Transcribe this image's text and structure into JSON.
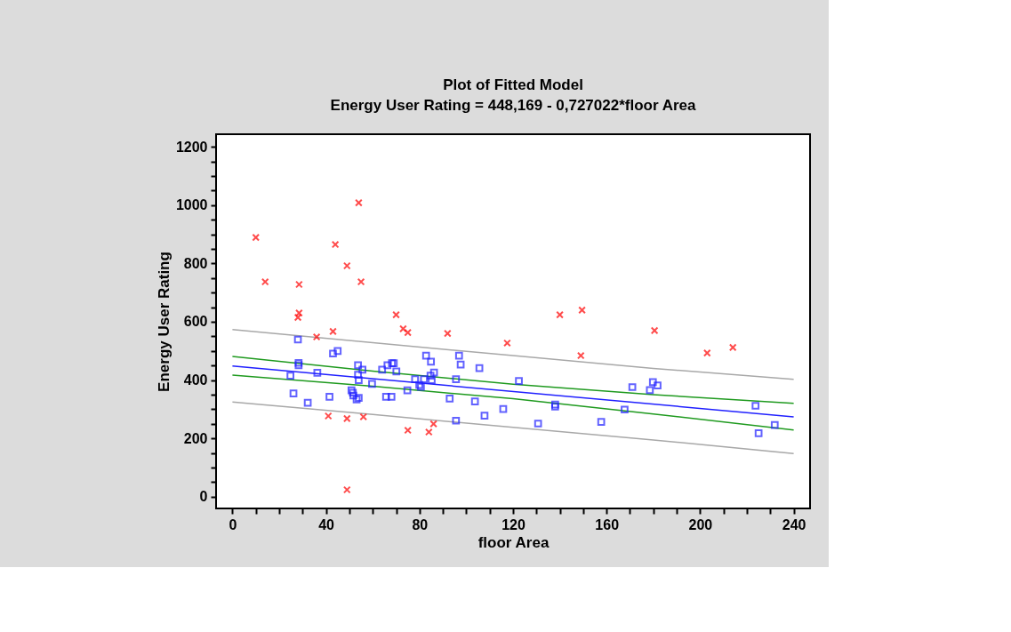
{
  "chart_data": {
    "type": "scatter",
    "title": "Plot of Fitted Model",
    "subtitle": "Energy User Rating = 448,169 - 0,727022*floor Area",
    "xlabel": "floor Area",
    "ylabel": "Energy User Rating",
    "xlim": [
      -7,
      247
    ],
    "ylim": [
      -40,
      1243
    ],
    "xticks": [
      0,
      {
        "value": 10,
        "label": null
      },
      {
        "value": 20,
        "label": null
      },
      {
        "value": 30,
        "label": null
      },
      40,
      {
        "value": 50,
        "label": null
      },
      {
        "value": 60,
        "label": null
      },
      {
        "value": 70,
        "label": null
      },
      80,
      {
        "value": 90,
        "label": null
      },
      {
        "value": 100,
        "label": null
      },
      {
        "value": 110,
        "label": null
      },
      120,
      {
        "value": 130,
        "label": null
      },
      {
        "value": 140,
        "label": null
      },
      {
        "value": 150,
        "label": null
      },
      160,
      {
        "value": 170,
        "label": null
      },
      {
        "value": 180,
        "label": null
      },
      {
        "value": 190,
        "label": null
      },
      200,
      {
        "value": 210,
        "label": null
      },
      {
        "value": 220,
        "label": null
      },
      {
        "value": 230,
        "label": null
      },
      240
    ],
    "yticks": [
      0,
      {
        "value": 50,
        "label": null
      },
      {
        "value": 100,
        "label": null
      },
      {
        "value": 150,
        "label": null
      },
      200,
      {
        "value": 250,
        "label": null
      },
      {
        "value": 300,
        "label": null
      },
      {
        "value": 350,
        "label": null
      },
      400,
      {
        "value": 450,
        "label": null
      },
      {
        "value": 500,
        "label": null
      },
      {
        "value": 550,
        "label": null
      },
      600,
      {
        "value": 650,
        "label": null
      },
      {
        "value": 700,
        "label": null
      },
      {
        "value": 750,
        "label": null
      },
      800,
      {
        "value": 850,
        "label": null
      },
      {
        "value": 900,
        "label": null
      },
      {
        "value": 950,
        "label": null
      },
      1000,
      {
        "value": 1050,
        "label": null
      },
      {
        "value": 1100,
        "label": null
      },
      {
        "value": 1150,
        "label": null
      },
      1200
    ],
    "series": [
      {
        "type": "line",
        "color": "#a8a8a8",
        "line_style": "solid",
        "marker": "none",
        "x": [
          0,
          60,
          120,
          180,
          240
        ],
        "values": [
          573,
          528,
          484,
          440,
          403
        ]
      },
      {
        "type": "line",
        "color": "#a8a8a8",
        "line_style": "solid",
        "marker": "none",
        "x": [
          0,
          60,
          120,
          180,
          240
        ],
        "values": [
          325,
          282,
          238,
          195,
          148
        ]
      },
      {
        "type": "line",
        "color": "#1f9a1f",
        "line_style": "solid",
        "marker": "none",
        "x": [
          0,
          60,
          120,
          180,
          240
        ],
        "values": [
          481,
          431,
          386,
          350,
          320
        ]
      },
      {
        "type": "line",
        "color": "#1f9a1f",
        "line_style": "solid",
        "marker": "none",
        "x": [
          0,
          60,
          120,
          180,
          240
        ],
        "values": [
          417,
          379,
          336,
          284,
          229
        ]
      },
      {
        "type": "line",
        "color": "#2020ff",
        "line_style": "solid",
        "marker": "none",
        "x": [
          0,
          240
        ],
        "values": [
          448,
          274
        ]
      },
      {
        "color": "#ff0000",
        "marker": "cross",
        "x": [
          10,
          14,
          28.5,
          28.5,
          28,
          36,
          44,
          43,
          41,
          49,
          49,
          49,
          54,
          55,
          56,
          70,
          73,
          75,
          75,
          84,
          86,
          92,
          117.5,
          140,
          149.5,
          149,
          180.5,
          203,
          214
        ],
        "values": [
          889,
          737,
          728,
          630,
          615,
          548,
          865,
          567,
          277,
          792,
          268,
          24,
          1008,
          737,
          274,
          624,
          576,
          563,
          228,
          222,
          250,
          560,
          527,
          624,
          640,
          484,
          570,
          493,
          512
        ]
      },
      {
        "color": "#2020ff",
        "marker": "square",
        "x": [
          28,
          43,
          45,
          28.3,
          28.3,
          24.8,
          26.1,
          32.2,
          36.3,
          41.5,
          50.9,
          51.5,
          51.7,
          53.1,
          54,
          53.7,
          53.7,
          54,
          55.6,
          59.7,
          64,
          65.7,
          68,
          66.3,
          68.2,
          69,
          70.1,
          74.8,
          78.1,
          80.6,
          79.9,
          81.9,
          82.8,
          84.9,
          84.7,
          86.2,
          85.2,
          92.9,
          95.6,
          95.6,
          96.9,
          97.6,
          103.7,
          105.6,
          107.8,
          115.8,
          122.5,
          130.7,
          138,
          138,
          157.7,
          167.7,
          171,
          178.5,
          179.8,
          181.8,
          223.7,
          225,
          231.9
        ],
        "values": [
          539,
          491,
          500,
          459,
          451,
          415,
          354,
          322,
          425,
          343,
          365,
          357,
          347,
          334,
          339,
          451,
          418,
          400,
          436,
          387,
          436,
          343,
          343,
          451,
          458,
          458,
          430,
          365,
          403,
          377,
          383,
          403,
          484,
          463,
          415,
          426,
          400,
          337,
          403,
          261,
          484,
          453,
          327,
          441,
          278,
          301,
          397,
          251,
          316,
          309,
          257,
          299,
          376,
          366,
          393,
          382,
          312,
          218,
          246
        ]
      }
    ]
  }
}
